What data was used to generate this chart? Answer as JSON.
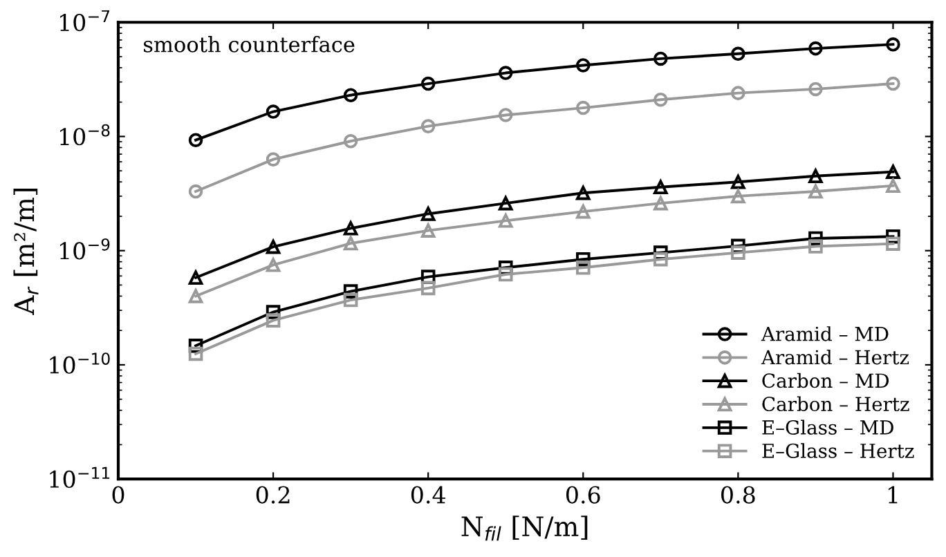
{
  "chart_data": {
    "type": "line",
    "annotations": [
      "smooth counterface"
    ],
    "xlabel": "N$_{fil}$ [N/m]",
    "ylabel": "A$_{r}$ [m²/m]",
    "x": [
      0.1,
      0.2,
      0.3,
      0.4,
      0.5,
      0.6,
      0.7,
      0.8,
      0.9,
      1.0
    ],
    "series": [
      {
        "name": "Aramid – MD",
        "color": "#000000",
        "marker": "circle",
        "values": [
          9.3e-09,
          1.65e-08,
          2.3e-08,
          2.9e-08,
          3.6e-08,
          4.2e-08,
          4.8e-08,
          5.3e-08,
          5.9e-08,
          6.4e-08
        ]
      },
      {
        "name": "Aramid – Hertz",
        "color": "#999999",
        "marker": "circle",
        "values": [
          3.3e-09,
          6.3e-09,
          9.1e-09,
          1.23e-08,
          1.54e-08,
          1.78e-08,
          2.1e-08,
          2.4e-08,
          2.6e-08,
          2.9e-08
        ]
      },
      {
        "name": "Carbon – MD",
        "color": "#000000",
        "marker": "triangle",
        "values": [
          5.8e-10,
          1.08e-09,
          1.57e-09,
          2.1e-09,
          2.6e-09,
          3.2e-09,
          3.6e-09,
          4e-09,
          4.5e-09,
          4.9e-09
        ]
      },
      {
        "name": "Carbon – Hertz",
        "color": "#999999",
        "marker": "triangle",
        "values": [
          4e-10,
          7.5e-10,
          1.16e-09,
          1.5e-09,
          1.83e-09,
          2.2e-09,
          2.6e-09,
          3e-09,
          3.3e-09,
          3.7e-09
        ]
      },
      {
        "name": "E–Glass – MD",
        "color": "#000000",
        "marker": "square",
        "values": [
          1.47e-10,
          2.9e-10,
          4.4e-10,
          5.9e-10,
          7.1e-10,
          8.4e-10,
          9.6e-10,
          1.1e-09,
          1.28e-09,
          1.33e-09
        ]
      },
      {
        "name": "E–Glass – Hertz",
        "color": "#999999",
        "marker": "square",
        "values": [
          1.25e-10,
          2.45e-10,
          3.7e-10,
          4.7e-10,
          6.2e-10,
          7.1e-10,
          8.4e-10,
          9.6e-10,
          1.09e-09,
          1.15e-09
        ]
      }
    ],
    "log": "y",
    "xlim": [
      0,
      1.05
    ],
    "xticks": [
      0,
      0.2,
      0.4,
      0.6,
      0.8,
      1
    ],
    "ylim": [
      1e-11,
      1e-07
    ],
    "yticks": [
      {
        "value": 1e-11,
        "label": "10$^{−11}$"
      },
      {
        "value": 1e-10,
        "label": "10$^{−10}$"
      },
      {
        "value": 1e-09,
        "label": "10$^{−9}$"
      },
      {
        "value": 1e-08,
        "label": "10$^{−8}$"
      },
      {
        "value": 1e-07,
        "label": "10$^{−7}$"
      }
    ],
    "grid": false,
    "legend": "bottom right",
    "line_style": "solid"
  }
}
